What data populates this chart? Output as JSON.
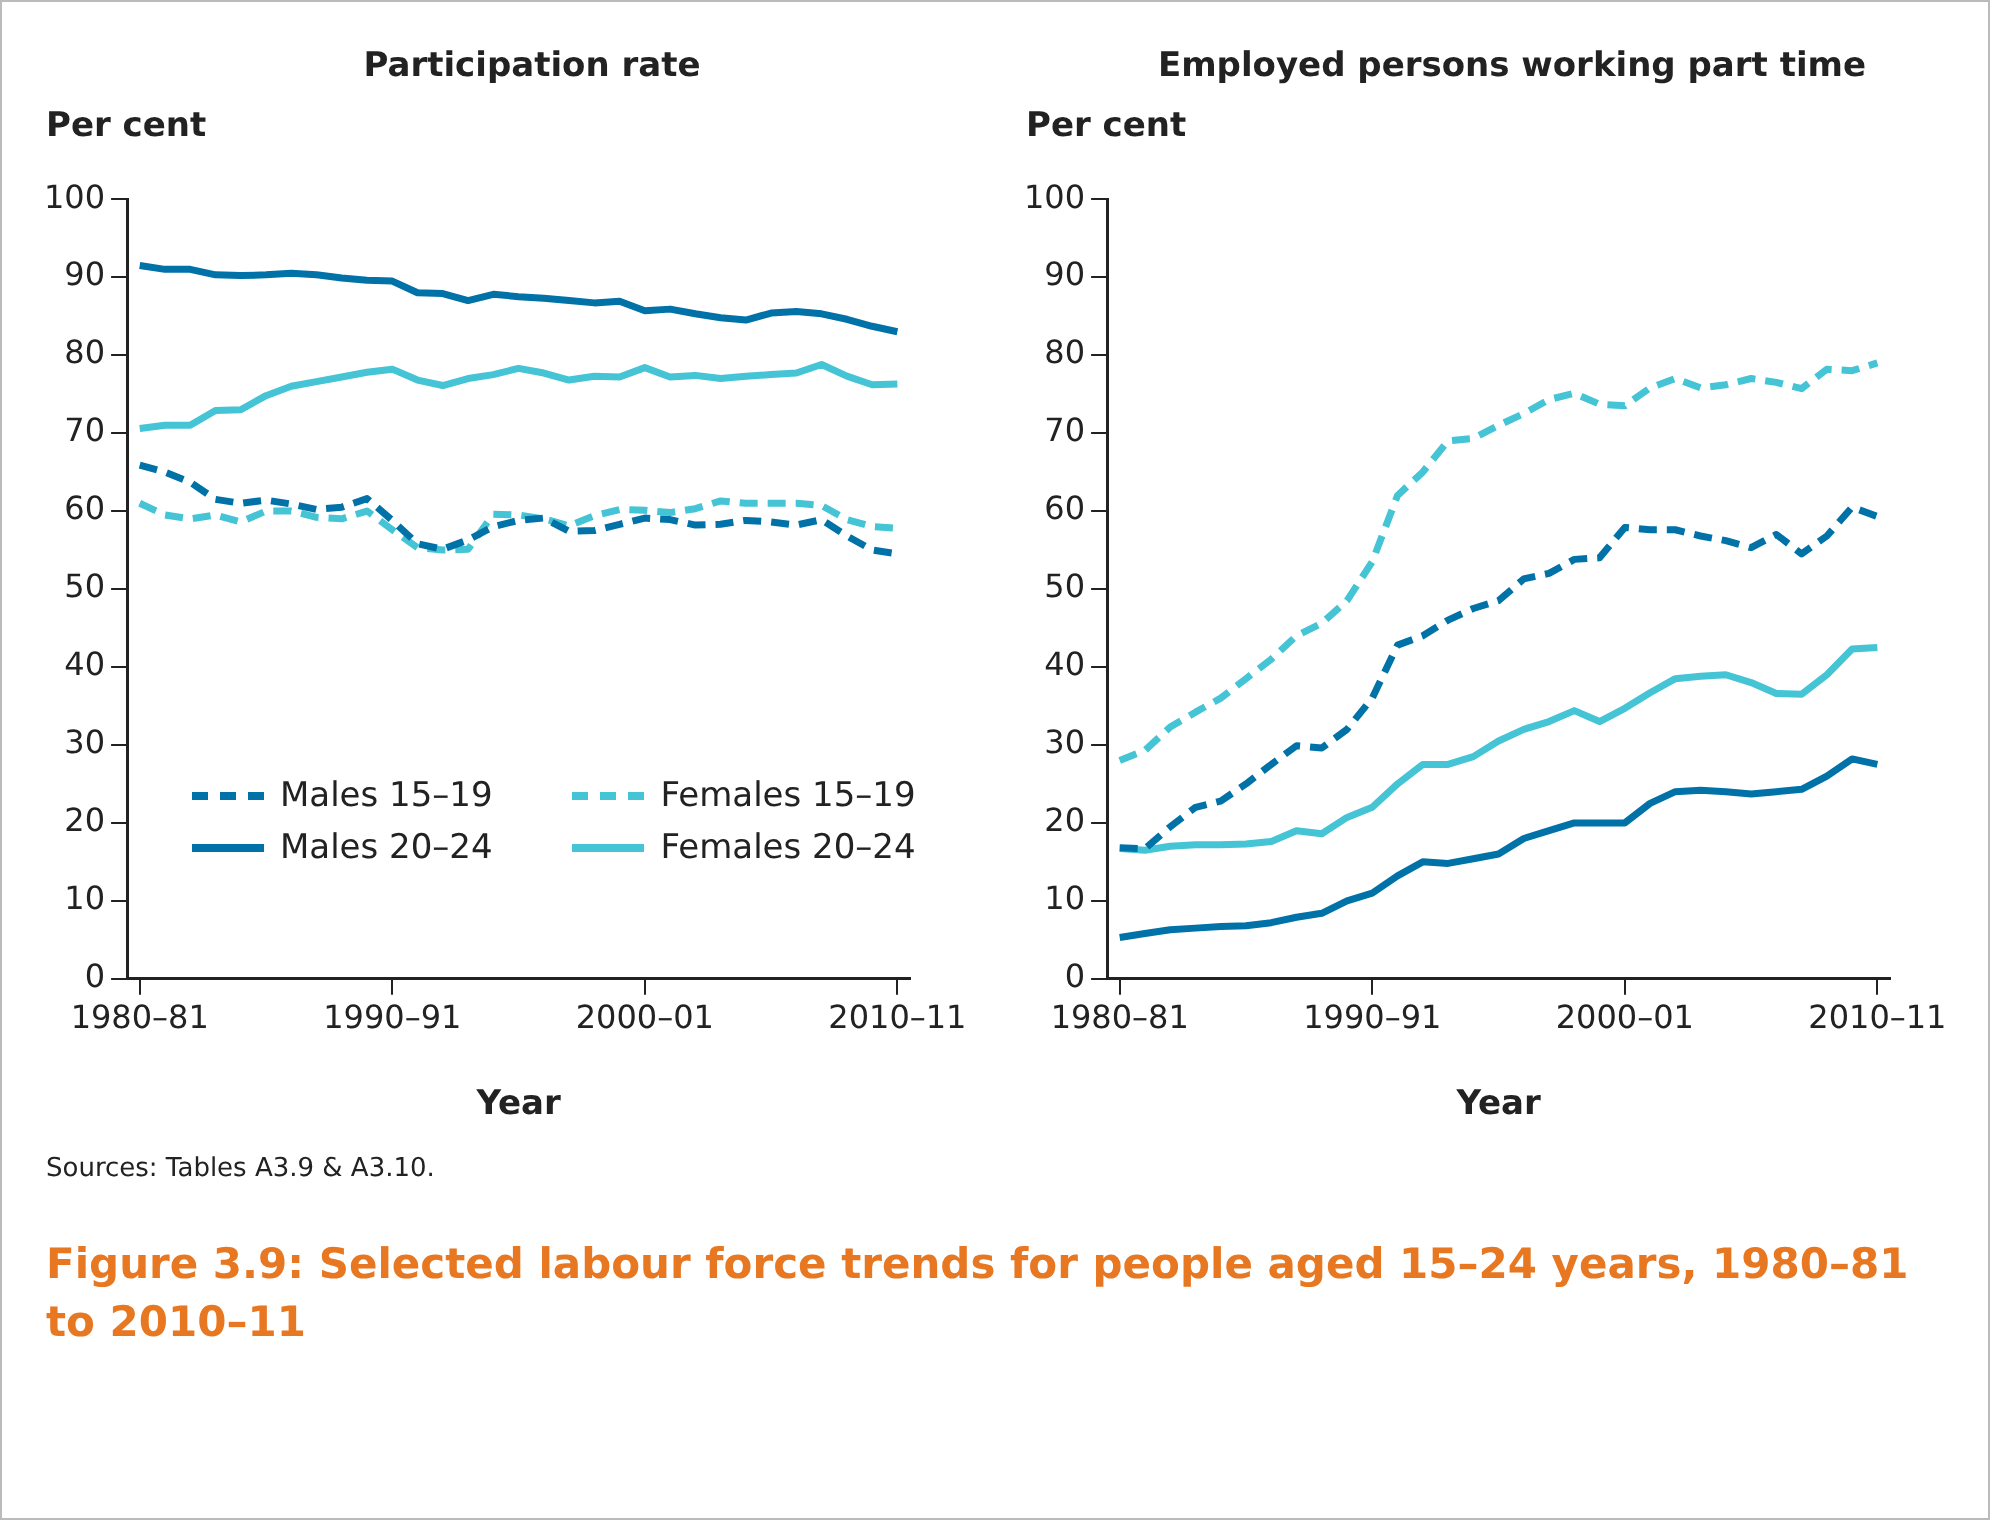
{
  "chart_data": [
    {
      "type": "line",
      "title": "Participation rate",
      "ylabel": "Per cent",
      "xlabel": "Year",
      "categories": [
        "1980–81",
        null,
        null,
        null,
        null,
        null,
        null,
        null,
        null,
        null,
        "1990–91",
        null,
        null,
        null,
        null,
        null,
        null,
        null,
        null,
        null,
        "2000–01",
        null,
        null,
        null,
        null,
        null,
        null,
        null,
        null,
        null,
        "2010–11"
      ],
      "series": [
        {
          "name": "Males 15–19",
          "color": "#0072a8",
          "line_style": "dashed",
          "values": [
            65.9,
            65,
            63.7,
            61.5,
            61,
            61.4,
            60.9,
            60.2,
            60.5,
            61.6,
            58.8,
            55.8,
            55.1,
            56.3,
            58,
            58.8,
            59.1,
            57.4,
            57.5,
            58.3,
            59.1,
            58.9,
            58.2,
            58.3,
            58.8,
            58.6,
            58.2,
            58.9,
            56.8,
            55,
            54.5
          ]
        },
        {
          "name": "Females 15–19",
          "color": "#44c4d4",
          "line_style": "dashed",
          "values": [
            61,
            59.5,
            59,
            59.5,
            58.6,
            60,
            60,
            59.2,
            59,
            60,
            57.6,
            55.3,
            55,
            55.1,
            59.6,
            59.5,
            59,
            58.1,
            59.4,
            60.2,
            60.1,
            59.8,
            60.3,
            61.3,
            61,
            61,
            61,
            60.7,
            58.9,
            58,
            57.8
          ]
        },
        {
          "name": "Males 20–24",
          "color": "#0072a8",
          "line_style": "solid",
          "values": [
            91.5,
            91,
            91,
            90.3,
            90.2,
            90.3,
            90.5,
            90.3,
            89.9,
            89.6,
            89.5,
            88,
            87.9,
            87,
            87.8,
            87.5,
            87.3,
            87,
            86.7,
            86.9,
            85.7,
            85.9,
            85.3,
            84.8,
            84.5,
            85.4,
            85.6,
            85.3,
            84.6,
            83.7,
            83
          ]
        },
        {
          "name": "Females 20–24",
          "color": "#44c4d4",
          "line_style": "solid",
          "values": [
            70.6,
            71,
            71,
            72.9,
            73,
            74.8,
            76,
            76.6,
            77.2,
            77.8,
            78.2,
            76.8,
            76.1,
            77,
            77.5,
            78.3,
            77.7,
            76.8,
            77.3,
            77.2,
            78.4,
            77.2,
            77.4,
            77,
            77.3,
            77.5,
            77.7,
            78.8,
            77.3,
            76.2,
            76.3
          ]
        }
      ],
      "ylim": [
        0,
        100
      ],
      "yticks": [
        0,
        10,
        20,
        30,
        40,
        50,
        60,
        70,
        80,
        90,
        100
      ],
      "grid": false,
      "legend": "bottom",
      "marker": "none",
      "annotations": [
        "Sources: Tables A3.9 & A3.10.",
        "Figure 3.9: Selected labour force trends for people aged 15–24 years, 1980–81 to 2010–11"
      ]
    },
    {
      "type": "line",
      "title": "Employed persons working part time",
      "ylabel": "Per cent",
      "xlabel": "Year",
      "categories": [
        "1980–81",
        null,
        null,
        null,
        null,
        null,
        null,
        null,
        null,
        null,
        "1990–91",
        null,
        null,
        null,
        null,
        null,
        null,
        null,
        null,
        null,
        "2000–01",
        null,
        null,
        null,
        null,
        null,
        null,
        null,
        null,
        null,
        "2010–11"
      ],
      "series": [
        {
          "color": "#0072a8",
          "line_style": "dashed",
          "values": [
            16.8,
            16.7,
            19.5,
            22,
            22.8,
            25,
            27.5,
            29.9,
            29.6,
            32,
            36,
            42.8,
            44,
            46,
            47.5,
            48.5,
            51.3,
            52,
            53.8,
            54,
            57.9,
            57.6,
            57.6,
            56.8,
            56.2,
            55.3,
            57,
            54.5,
            56.8,
            60.5,
            59.3
          ]
        },
        {
          "color": "#44c4d4",
          "line_style": "dashed",
          "values": [
            28,
            29.3,
            32.3,
            34.2,
            36,
            38.5,
            41,
            44,
            45.6,
            48.5,
            53.5,
            62,
            65,
            69,
            69.3,
            71,
            72.5,
            74.3,
            75.1,
            73.7,
            73.5,
            75.8,
            77,
            75.8,
            76.2,
            77,
            76.5,
            75.7,
            78.2,
            78,
            79
          ]
        },
        {
          "color": "#0072a8",
          "line_style": "solid",
          "values": [
            5.3,
            5.8,
            6.3,
            6.5,
            6.7,
            6.8,
            7.2,
            7.9,
            8.4,
            10,
            11,
            13.2,
            15,
            14.8,
            15.4,
            16,
            18,
            19,
            20,
            20,
            20,
            22.5,
            24,
            24.2,
            24,
            23.7,
            24,
            24.3,
            26,
            28.2,
            27.5
          ]
        },
        {
          "color": "#44c4d4",
          "line_style": "solid",
          "values": [
            16.7,
            16.5,
            17,
            17.2,
            17.2,
            17.3,
            17.6,
            19,
            18.6,
            20.7,
            22,
            25,
            27.5,
            27.5,
            28.5,
            30.5,
            32,
            33,
            34.4,
            33,
            34.7,
            36.7,
            38.5,
            38.8,
            39,
            38,
            36.6,
            36.5,
            39,
            42.3,
            42.5
          ]
        }
      ],
      "ylim": [
        0,
        100
      ],
      "yticks": [
        0,
        10,
        20,
        30,
        40,
        50,
        60,
        70,
        80,
        90,
        100
      ],
      "grid": false,
      "legend": false,
      "marker": "none"
    }
  ]
}
